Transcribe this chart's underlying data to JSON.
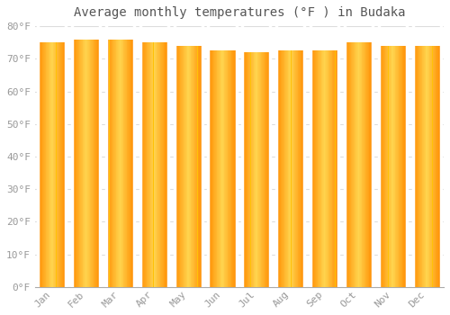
{
  "title": "Average monthly temperatures (°F ) in Budaka",
  "months": [
    "Jan",
    "Feb",
    "Mar",
    "Apr",
    "May",
    "Jun",
    "Jul",
    "Aug",
    "Sep",
    "Oct",
    "Nov",
    "Dec"
  ],
  "values": [
    75,
    76,
    76,
    75,
    74,
    72.5,
    72,
    72.5,
    72.5,
    75,
    74,
    74
  ],
  "ylim": [
    0,
    80
  ],
  "yticks": [
    0,
    10,
    20,
    30,
    40,
    50,
    60,
    70,
    80
  ],
  "bar_color_center": "#FFD54F",
  "bar_color_edge": "#FFA000",
  "background_color": "#FFFFFF",
  "grid_color": "#DDDDDD",
  "tick_label_color": "#999999",
  "title_color": "#555555",
  "title_fontsize": 10,
  "tick_fontsize": 8
}
